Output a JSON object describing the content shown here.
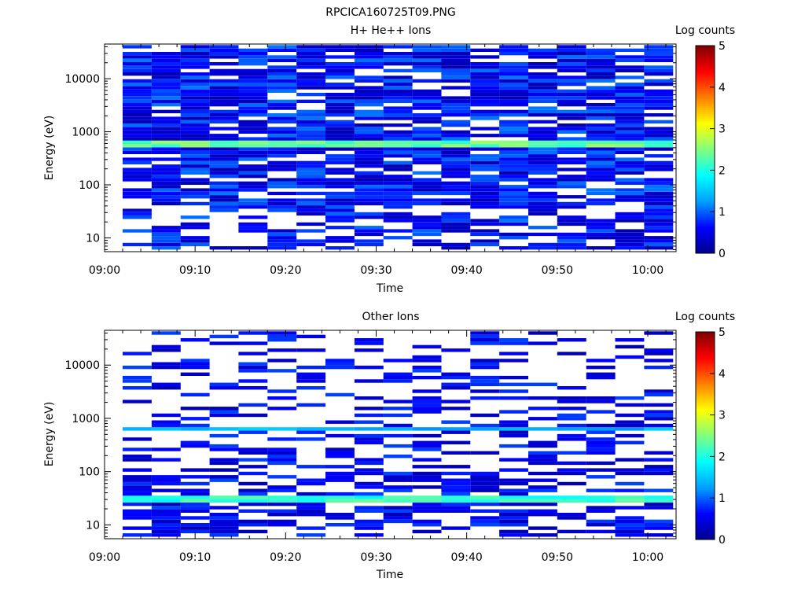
{
  "figure_title": "RPCICA160725T09.PNG",
  "colormap": [
    "#00008c",
    "#0000ff",
    "#00a0ff",
    "#00ffff",
    "#80ff80",
    "#ffff00",
    "#ff8000",
    "#ff0000",
    "#800000"
  ],
  "chart_data": [
    {
      "type": "heatmap",
      "title": "H+ He++ Ions",
      "xlabel": "Time",
      "ylabel": "Energy (eV)",
      "x_tick_labels": [
        "09:00",
        "09:10",
        "09:20",
        "09:30",
        "09:40",
        "09:50",
        "10:00"
      ],
      "y_tick_labels": [
        "10",
        "100",
        "1000",
        "10000"
      ],
      "y_scale": "log",
      "ylim": [
        5.5,
        45000
      ],
      "xlim": [
        "09:00",
        "10:03"
      ],
      "colorbar": {
        "label": "Log counts",
        "ticks": [
          "0",
          "1",
          "2",
          "3",
          "4",
          "5"
        ],
        "range": [
          0,
          5
        ]
      },
      "columns": 19,
      "time_start": "09:02",
      "time_step_min": 3.2,
      "energy_min": 6,
      "energy_max": 43000,
      "bins_per_column": 60,
      "bands": [
        {
          "energy_low": 480,
          "energy_high": 720,
          "peak_log_counts": 2.7,
          "description": "bright band"
        }
      ],
      "coverage_threshold_energy": 40
    },
    {
      "type": "heatmap",
      "title": "Other Ions",
      "xlabel": "Time",
      "ylabel": "Energy (eV)",
      "x_tick_labels": [
        "09:00",
        "09:10",
        "09:20",
        "09:30",
        "09:40",
        "09:50",
        "10:00"
      ],
      "y_tick_labels": [
        "10",
        "100",
        "1000",
        "10000"
      ],
      "y_scale": "log",
      "ylim": [
        5.5,
        45000
      ],
      "xlim": [
        "09:00",
        "10:03"
      ],
      "colorbar": {
        "label": "Log counts",
        "ticks": [
          "0",
          "1",
          "2",
          "3",
          "4",
          "5"
        ],
        "range": [
          0,
          5
        ]
      },
      "columns": 19,
      "time_start": "09:02",
      "time_step_min": 3.2,
      "energy_min": 6,
      "energy_max": 43000,
      "bins_per_column": 60,
      "bands": [
        {
          "energy_low": 560,
          "energy_high": 680,
          "peak_log_counts": 1.6,
          "description": "upper band"
        },
        {
          "energy_low": 26,
          "energy_high": 38,
          "peak_log_counts": 2.4,
          "description": "lower band"
        }
      ],
      "coverage_threshold_energy": 100
    }
  ]
}
